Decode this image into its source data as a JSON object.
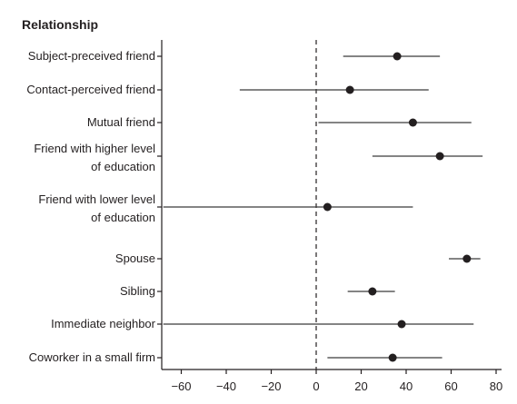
{
  "chart_data": {
    "type": "forest",
    "title": "Relationship",
    "xlabel": "",
    "ylabel": "",
    "xlim": [
      -68,
      82
    ],
    "xticks": [
      -60,
      -40,
      -20,
      0,
      20,
      40,
      60,
      80
    ],
    "xtick_labels": [
      "−60",
      "−40",
      "−20",
      "0",
      "20",
      "40",
      "60",
      "80"
    ],
    "reference_line": 0,
    "grid": false,
    "rows": [
      {
        "label_lines": [
          "Subject-preceived friend"
        ],
        "estimate": 36,
        "low": 12,
        "high": 55
      },
      {
        "label_lines": [
          "Contact-perceived friend"
        ],
        "estimate": 15,
        "low": -34,
        "high": 50
      },
      {
        "label_lines": [
          "Mutual friend"
        ],
        "estimate": 43,
        "low": 1,
        "high": 69
      },
      {
        "label_lines": [
          "Friend with higher level",
          "of education"
        ],
        "estimate": 55,
        "low": 25,
        "high": 74
      },
      {
        "label_lines": [
          "Friend with lower level",
          "of education"
        ],
        "estimate": 5,
        "low": -68,
        "high": 43
      },
      {
        "label_lines": [
          "Spouse"
        ],
        "estimate": 67,
        "low": 59,
        "high": 73
      },
      {
        "label_lines": [
          "Sibling"
        ],
        "estimate": 25,
        "low": 14,
        "high": 35
      },
      {
        "label_lines": [
          "Immediate neighbor"
        ],
        "estimate": 38,
        "low": -68,
        "high": 70
      },
      {
        "label_lines": [
          "Coworker in a small firm"
        ],
        "estimate": 34,
        "low": 5,
        "high": 56
      }
    ]
  }
}
